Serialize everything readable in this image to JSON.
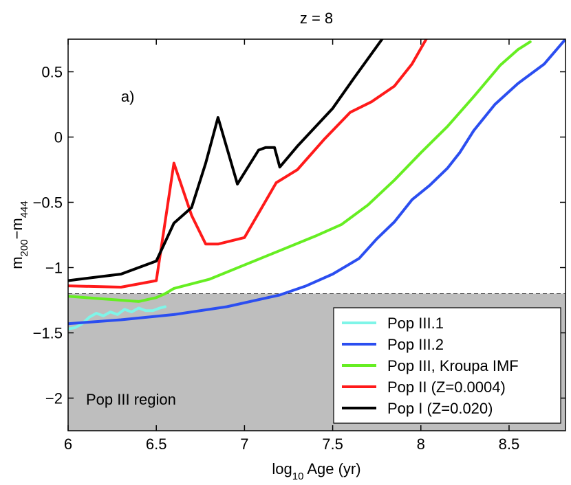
{
  "chart_data": {
    "type": "line",
    "title": "z = 8",
    "xlabel": {
      "prefix": "log",
      "sub": "10",
      "suffix": " Age (yr)"
    },
    "ylabel": {
      "a": "m",
      "a_sub": "200",
      "mid": "−m",
      "b_sub": "444"
    },
    "xlim": [
      6,
      8.82
    ],
    "ylim": [
      -2.25,
      0.75
    ],
    "xticks": [
      6,
      6.5,
      7,
      7.5,
      8,
      8.5
    ],
    "xtick_labels": [
      "6",
      "6.5",
      "7",
      "7.5",
      "8",
      "8.5"
    ],
    "yticks": [
      -2,
      -1.5,
      -1,
      -0.5,
      0,
      0.5
    ],
    "ytick_labels": [
      "−2",
      "−1.5",
      "−1",
      "−0.5",
      "0",
      "0.5"
    ],
    "region": {
      "label": "Pop III region",
      "y_max": -1.2,
      "color": "#bebebe"
    },
    "annotation": {
      "text": "a)",
      "x": 6.3,
      "y": 0.27
    },
    "legend_position": "lower-right",
    "series": [
      {
        "name": "Pop III.1",
        "color": "#7ff5e8",
        "x": [
          6.0,
          6.04,
          6.08,
          6.12,
          6.16,
          6.2,
          6.24,
          6.28,
          6.32,
          6.36,
          6.4,
          6.44,
          6.48,
          6.52,
          6.55
        ],
        "y": [
          -1.47,
          -1.46,
          -1.43,
          -1.38,
          -1.35,
          -1.37,
          -1.34,
          -1.36,
          -1.32,
          -1.34,
          -1.31,
          -1.33,
          -1.33,
          -1.31,
          -1.3
        ]
      },
      {
        "name": "Pop III.2",
        "color": "#2b4ef0",
        "x": [
          6.0,
          6.3,
          6.6,
          6.9,
          7.1,
          7.2,
          7.35,
          7.5,
          7.65,
          7.75,
          7.85,
          7.95,
          8.05,
          8.15,
          8.22,
          8.3,
          8.42,
          8.55,
          8.7,
          8.82
        ],
        "y": [
          -1.43,
          -1.4,
          -1.36,
          -1.3,
          -1.24,
          -1.21,
          -1.14,
          -1.05,
          -0.93,
          -0.78,
          -0.65,
          -0.48,
          -0.37,
          -0.24,
          -0.12,
          0.05,
          0.25,
          0.41,
          0.56,
          0.75
        ]
      },
      {
        "name": "Pop III, Kroupa IMF",
        "color": "#66ee22",
        "x": [
          6.0,
          6.2,
          6.4,
          6.5,
          6.55,
          6.6,
          6.8,
          7.0,
          7.2,
          7.4,
          7.55,
          7.7,
          7.85,
          8.0,
          8.15,
          8.3,
          8.45,
          8.55,
          8.62
        ],
        "y": [
          -1.22,
          -1.24,
          -1.26,
          -1.23,
          -1.2,
          -1.16,
          -1.09,
          -0.98,
          -0.87,
          -0.76,
          -0.67,
          -0.52,
          -0.33,
          -0.12,
          0.08,
          0.31,
          0.55,
          0.67,
          0.73
        ]
      },
      {
        "name": "Pop II (Z=0.0004)",
        "color": "#ff1a1a",
        "x": [
          6.0,
          6.3,
          6.5,
          6.6,
          6.7,
          6.78,
          6.85,
          7.0,
          7.18,
          7.3,
          7.45,
          7.6,
          7.72,
          7.85,
          7.95,
          8.03
        ],
        "y": [
          -1.14,
          -1.15,
          -1.1,
          -0.2,
          -0.6,
          -0.82,
          -0.82,
          -0.77,
          -0.35,
          -0.25,
          -0.02,
          0.19,
          0.27,
          0.39,
          0.56,
          0.75
        ]
      },
      {
        "name": "Pop I (Z=0.020)",
        "color": "#000000",
        "x": [
          6.0,
          6.3,
          6.5,
          6.6,
          6.7,
          6.78,
          6.85,
          6.96,
          7.08,
          7.12,
          7.17,
          7.2,
          7.3,
          7.5,
          7.62,
          7.78
        ],
        "y": [
          -1.1,
          -1.05,
          -0.95,
          -0.66,
          -0.54,
          -0.2,
          0.15,
          -0.36,
          -0.1,
          -0.08,
          -0.08,
          -0.23,
          -0.07,
          0.22,
          0.45,
          0.75
        ]
      }
    ]
  }
}
